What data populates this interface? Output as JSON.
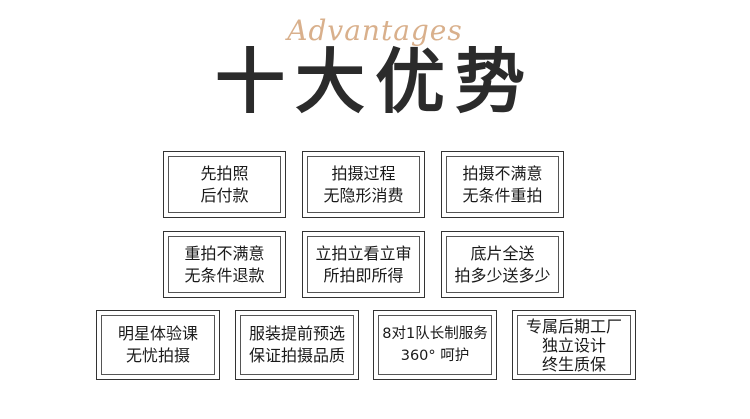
{
  "header": {
    "script_title": "Advantages",
    "main_title": "十大优势"
  },
  "advantages": [
    {
      "line1": "先拍照",
      "line2": "后付款",
      "line3": ""
    },
    {
      "line1": "拍摄过程",
      "line2": "无隐形消费",
      "line3": ""
    },
    {
      "line1": "拍摄不满意",
      "line2": "无条件重拍",
      "line3": ""
    },
    {
      "line1": "重拍不满意",
      "line2": "无条件退款",
      "line3": ""
    },
    {
      "line1": "立拍立看立审",
      "line2": "所拍即所得",
      "line3": ""
    },
    {
      "line1": "底片全送",
      "line2": "拍多少送多少",
      "line3": ""
    },
    {
      "line1": "明星体验课",
      "line2": "无忧拍摄",
      "line3": ""
    },
    {
      "line1": "服装提前预选",
      "line2": "保证拍摄品质",
      "line3": ""
    },
    {
      "line1": "8对1队长制服务",
      "line2": "360° 呵护",
      "line3": ""
    },
    {
      "line1": "专属后期工厂",
      "line2": "独立设计",
      "line3": "终生质保"
    }
  ]
}
